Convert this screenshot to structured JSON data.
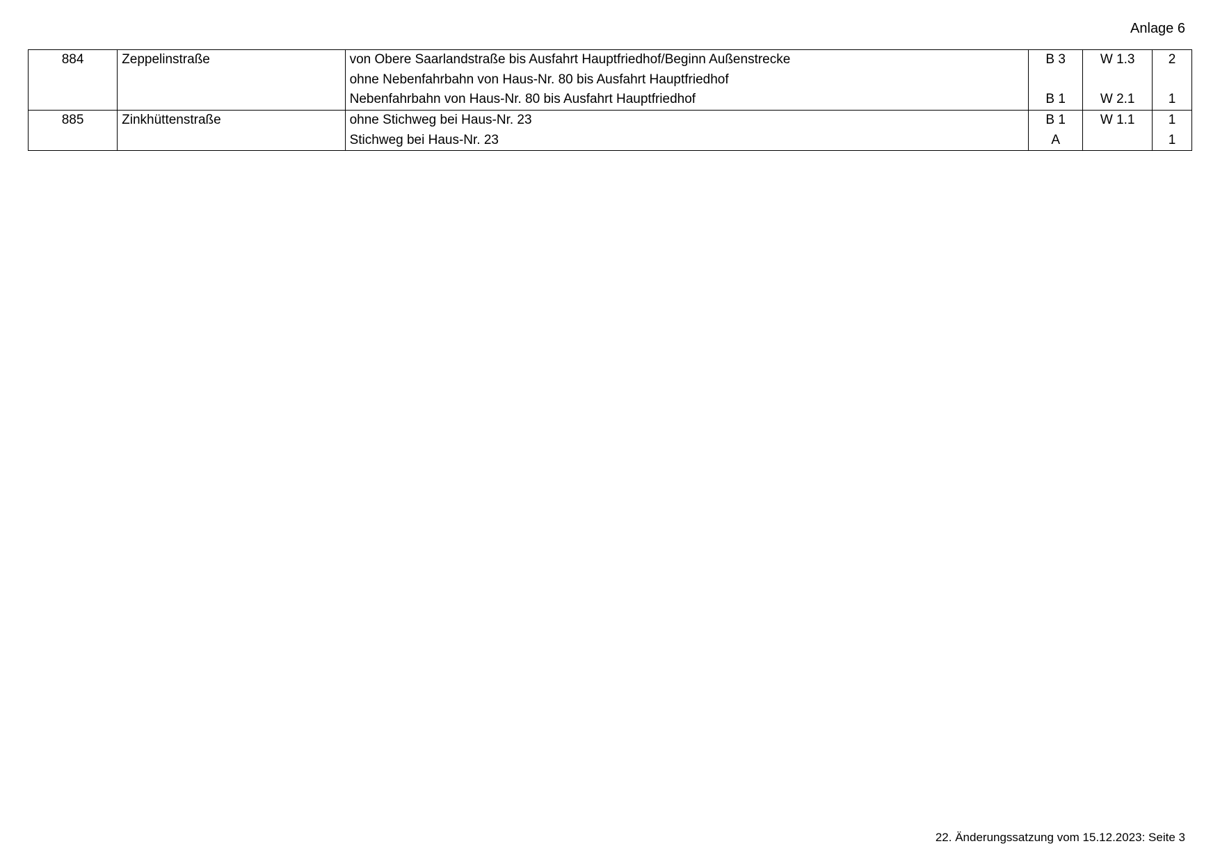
{
  "header": {
    "title": "Anlage 6"
  },
  "table": {
    "column_widths": {
      "id": 90,
      "name": 230,
      "desc": 690,
      "c1": 55,
      "c2": 70,
      "c3": 40
    },
    "font_size": 19,
    "border_color": "#000000",
    "background_color": "#ffffff",
    "groups": [
      {
        "id": "884",
        "name": "Zeppelinstraße",
        "rows": [
          {
            "desc": "von Obere Saarlandstraße bis Ausfahrt Hauptfriedhof/Beginn Außenstrecke",
            "c1": "B 3",
            "c2": "W 1.3",
            "c3": "2"
          },
          {
            "desc": "ohne Nebenfahrbahn von Haus-Nr. 80 bis Ausfahrt Hauptfriedhof",
            "c1": "",
            "c2": "",
            "c3": ""
          },
          {
            "desc": "Nebenfahrbahn von Haus-Nr. 80 bis Ausfahrt Hauptfriedhof",
            "c1": "B 1",
            "c2": "W 2.1",
            "c3": "1"
          }
        ]
      },
      {
        "id": "885",
        "name": "Zinkhüttenstraße",
        "rows": [
          {
            "desc": "ohne Stichweg bei Haus-Nr. 23",
            "c1": "B 1",
            "c2": "W 1.1",
            "c3": "1"
          },
          {
            "desc": "Stichweg bei Haus-Nr. 23",
            "c1": "A",
            "c2": "",
            "c3": "1"
          }
        ]
      }
    ]
  },
  "footer": {
    "text": "22. Änderungssatzung vom 15.12.2023: Seite 3"
  }
}
